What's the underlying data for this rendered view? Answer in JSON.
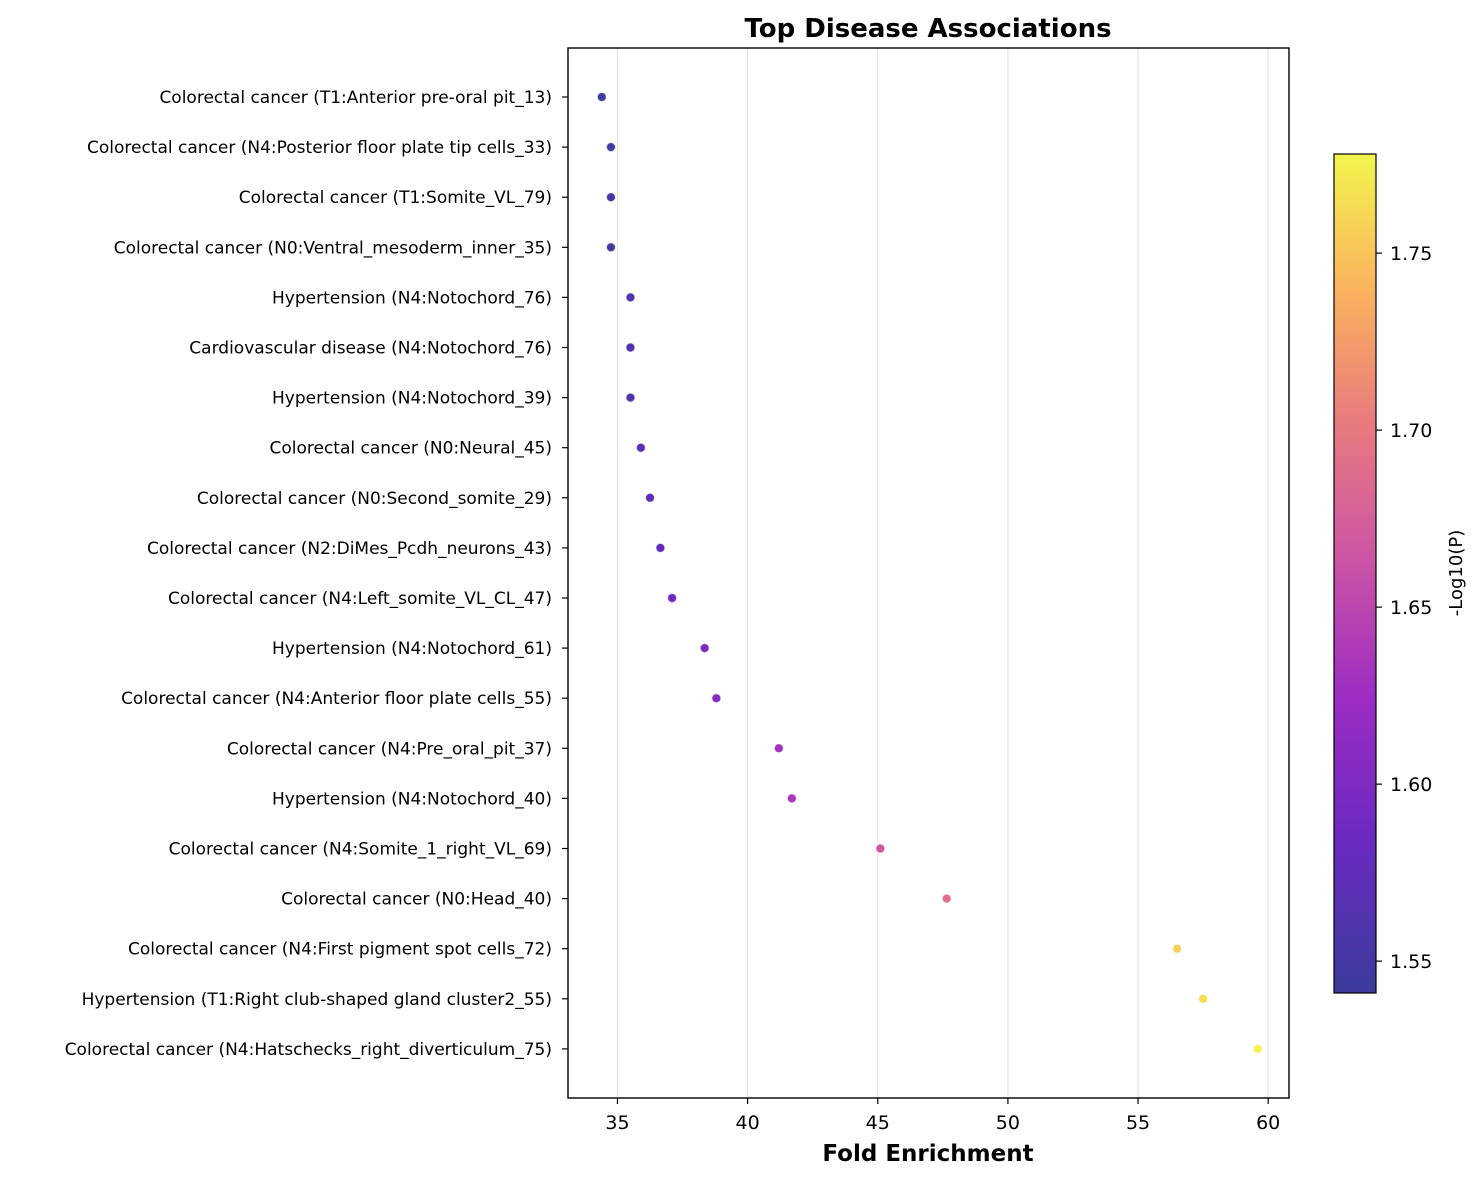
{
  "chart_data": {
    "type": "scatter",
    "title": "Top Disease Associations",
    "xlabel": "Fold Enrichment",
    "ylabel": "",
    "xlim": [
      33.1,
      60.8
    ],
    "xticks": [
      "35",
      "40",
      "45",
      "50",
      "55",
      "60"
    ],
    "xtick_values": [
      35,
      40,
      45,
      50,
      55,
      60
    ],
    "grid": "vertical",
    "colormap": "plasma",
    "colorbar": {
      "label": "-Log10(P)",
      "range": [
        1.541,
        1.778
      ],
      "ticks": [
        "1.55",
        "1.60",
        "1.65",
        "1.70",
        "1.75"
      ],
      "tick_values": [
        1.55,
        1.6,
        1.65,
        1.7,
        1.75
      ]
    },
    "categories": [
      "Colorectal cancer (T1:Anterior pre-oral pit_13)",
      "Colorectal cancer (N4:Posterior floor plate tip cells_33)",
      "Colorectal cancer (T1:Somite_VL_79)",
      "Colorectal cancer (N0:Ventral_mesoderm_inner_35)",
      "Hypertension (N4:Notochord_76)",
      "Cardiovascular disease (N4:Notochord_76)",
      "Hypertension (N4:Notochord_39)",
      "Colorectal cancer (N0:Neural_45)",
      "Colorectal cancer (N0:Second_somite_29)",
      "Colorectal cancer (N2:DiMes_Pcdh_neurons_43)",
      "Colorectal cancer (N4:Left_somite_VL_CL_47)",
      "Hypertension (N4:Notochord_61)",
      "Colorectal cancer (N4:Anterior floor plate cells_55)",
      "Colorectal cancer (N4:Pre_oral_pit_37)",
      "Hypertension (N4:Notochord_40)",
      "Colorectal cancer (N4:Somite_1_right_VL_69)",
      "Colorectal cancer (N0:Head_40)",
      "Colorectal cancer (N4:First pigment spot cells_72)",
      "Hypertension (T1:Right club-shaped gland cluster2_55)",
      "Colorectal cancer (N4:Hatschecks_right_diverticulum_75)"
    ],
    "fold_enrichment": [
      34.4,
      34.75,
      34.75,
      34.75,
      35.5,
      35.5,
      35.5,
      35.9,
      36.25,
      36.65,
      37.1,
      38.35,
      38.8,
      41.2,
      41.7,
      45.1,
      47.65,
      56.5,
      57.5,
      59.6
    ],
    "neg_log10_p": [
      1.542,
      1.548,
      1.548,
      1.548,
      1.56,
      1.56,
      1.56,
      1.566,
      1.572,
      1.578,
      1.584,
      1.598,
      1.604,
      1.63,
      1.636,
      1.668,
      1.69,
      1.756,
      1.764,
      1.778
    ]
  }
}
